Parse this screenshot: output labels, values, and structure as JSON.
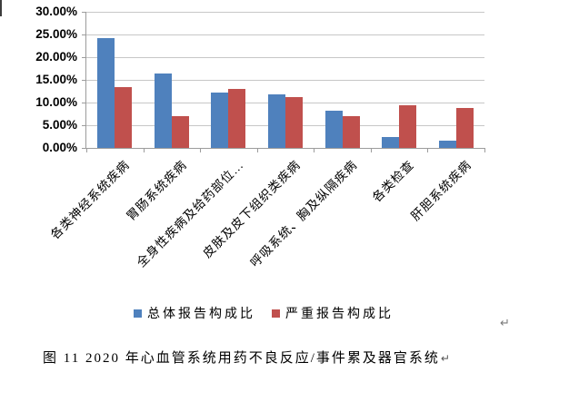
{
  "chart_data": {
    "type": "bar",
    "categories": [
      "各类神经系统疾病",
      "胃肠系统疾病",
      "全身性疾病及给药部位…",
      "皮肤及皮下组织类疾病",
      "呼吸系统、胸及纵隔疾病",
      "各类检查",
      "肝胆系统疾病"
    ],
    "series": [
      {
        "name": "总体报告构成比",
        "color": "#4f81bd",
        "values": [
          24.3,
          16.4,
          12.2,
          11.9,
          8.3,
          2.4,
          1.7
        ]
      },
      {
        "name": "严重报告构成比",
        "color": "#c0504d",
        "values": [
          13.4,
          7.1,
          13.0,
          11.2,
          7.1,
          9.5,
          8.9
        ]
      }
    ],
    "title": "",
    "xlabel": "",
    "ylabel": "",
    "ylim": [
      0,
      30
    ],
    "ytick_step": 5,
    "ytick_labels": [
      "0.00%",
      "5.00%",
      "10.00%",
      "15.00%",
      "20.00%",
      "25.00%",
      "30.00%"
    ],
    "grid": true,
    "legend_position": "bottom",
    "gridline_color": "#c7c7c7",
    "axis_color": "#9c9c9c"
  },
  "caption": {
    "text": "图 11  2020 年心血管系统用药不良反应/事件累及器官系统"
  },
  "marks": {
    "return_mark": "↵"
  }
}
